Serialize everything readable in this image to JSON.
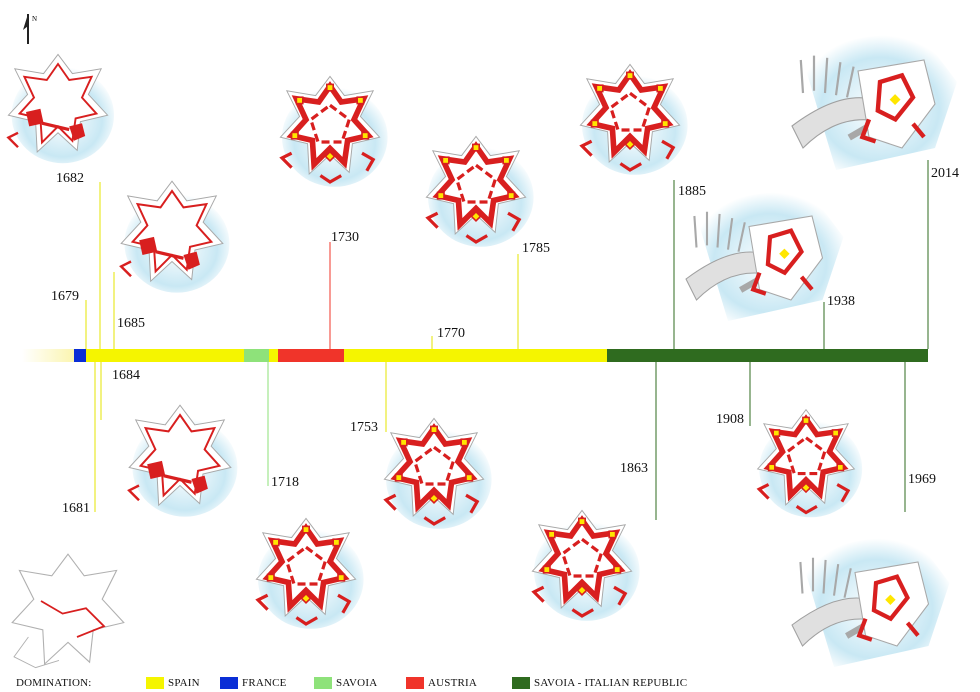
{
  "north_label": "N",
  "timeline": {
    "segments": [
      {
        "domination": "spain",
        "from": 1679,
        "to": 1681,
        "color": "#fbf5b0"
      },
      {
        "domination": "france",
        "from": 1681,
        "to": 1682,
        "color": "#0a2ed6"
      },
      {
        "domination": "spain",
        "from": 1682,
        "to": 1713,
        "color": "#f5f500"
      },
      {
        "domination": "savoia",
        "from": 1713,
        "to": 1716,
        "color": "#8ee27a"
      },
      {
        "domination": "spain",
        "from": 1716,
        "to": 1718,
        "color": "#f5f500"
      },
      {
        "domination": "austria",
        "from": 1718,
        "to": 1734,
        "color": "#f0342a"
      },
      {
        "domination": "spain",
        "from": 1734,
        "to": 1800,
        "color": "#f5f500"
      },
      {
        "domination": "savoia-italian-republic",
        "from": 1800,
        "to": 2014,
        "color": "#2f6b1f"
      }
    ]
  },
  "years_above": [
    "1682",
    "1679",
    "1685",
    "1730",
    "1770",
    "1785",
    "1885",
    "1938",
    "2014"
  ],
  "years_below": [
    "1684",
    "1681",
    "1718",
    "1753",
    "1863",
    "1908",
    "1969"
  ],
  "legend": {
    "title": "DOMINATION:",
    "items": [
      {
        "label": "SPAIN",
        "color": "#f5f500"
      },
      {
        "label": "FRANCE",
        "color": "#0a2ed6"
      },
      {
        "label": "SAVOIA",
        "color": "#8ee27a"
      },
      {
        "label": "AUSTRIA",
        "color": "#f0342a"
      },
      {
        "label": "SAVOIA - ITALIAN REPUBLIC",
        "color": "#2f6b1f"
      }
    ]
  },
  "colors": {
    "fort_red": "#d81f1f",
    "bastion_yellow": "#ffe600",
    "sea": "#bfe4f2",
    "outline": "#9a9a9a"
  },
  "plan_icons": [
    "star-fort-plan-icon",
    "harbour-plan-icon"
  ]
}
